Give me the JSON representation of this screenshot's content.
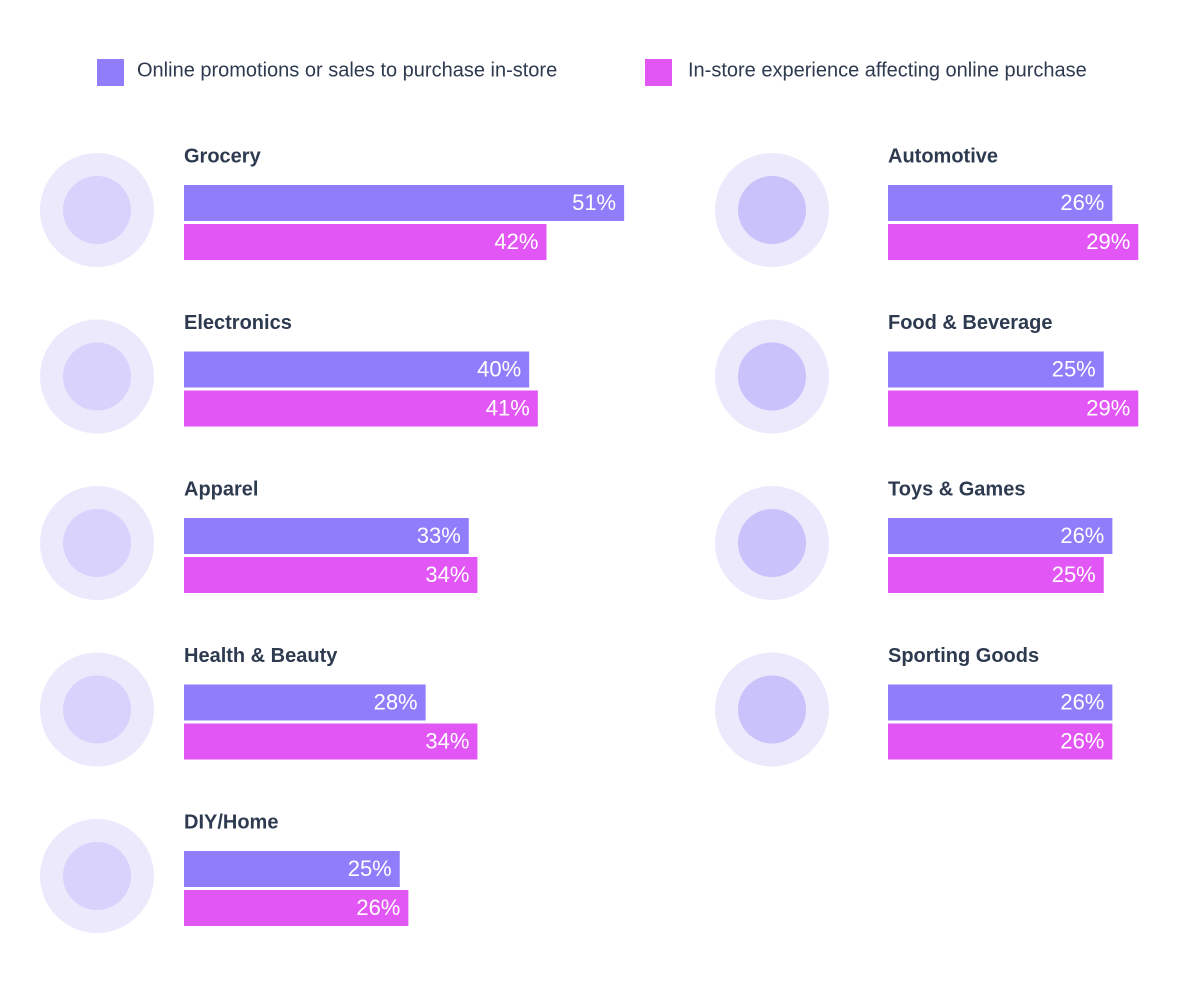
{
  "chart_data": {
    "type": "bar",
    "orientation": "horizontal",
    "categories": [
      "Grocery",
      "Electronics",
      "Apparel",
      "Health & Beauty",
      "DIY/Home",
      "Automotive",
      "Food & Beverage",
      "Toys & Games",
      "Sporting Goods"
    ],
    "series": [
      {
        "name": "Online promotions or sales to purchase in-store",
        "color": "#8f7dfb",
        "values": [
          51,
          40,
          33,
          28,
          25,
          26,
          25,
          26,
          26
        ],
        "value_labels": [
          "51%",
          "40%",
          "33%",
          "28%",
          "25%",
          "26%",
          "25%",
          "26%",
          "26%"
        ]
      },
      {
        "name": "In-store experience affecting online purchase",
        "color": "#e356f6",
        "values": [
          42,
          41,
          34,
          34,
          26,
          29,
          29,
          25,
          26
        ],
        "value_labels": [
          "42%",
          "41%",
          "34%",
          "34%",
          "26%",
          "29%",
          "29%",
          "25%",
          "26%"
        ]
      }
    ]
  }
}
